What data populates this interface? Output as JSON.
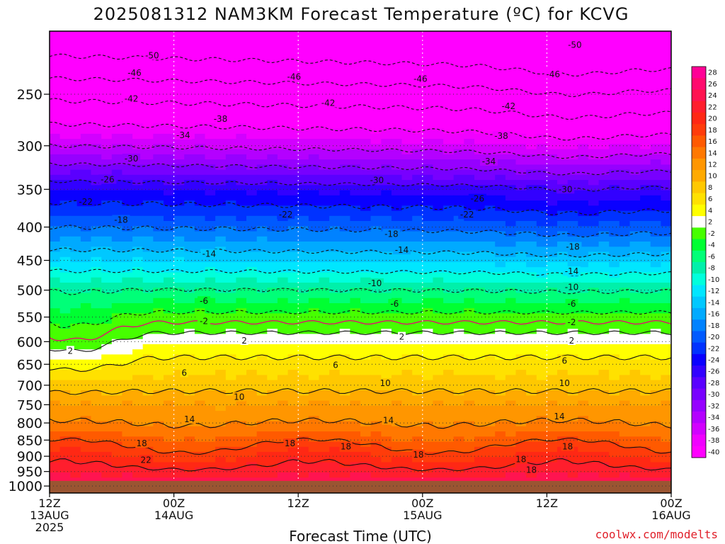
{
  "title": "2025081312 NAM3KM Forecast Temperature (ºC) for KCVG",
  "xlabel": "Forecast Time (UTC)",
  "credit": "coolwx.com/modelts",
  "chart_data": {
    "type": "heatmap",
    "title": "2025081312 NAM3KM Forecast Temperature (ºC) for KCVG",
    "xlabel": "Forecast Time (UTC)",
    "ylabel": "",
    "x_ticks": [
      {
        "hour": 0,
        "l1": "12Z",
        "l2": "13AUG",
        "l3": "2025"
      },
      {
        "hour": 12,
        "l1": "00Z",
        "l2": "14AUG",
        "l3": ""
      },
      {
        "hour": 24,
        "l1": "12Z",
        "l2": "",
        "l3": ""
      },
      {
        "hour": 36,
        "l1": "00Z",
        "l2": "15AUG",
        "l3": ""
      },
      {
        "hour": 48,
        "l1": "12Z",
        "l2": "",
        "l3": ""
      },
      {
        "hour": 60,
        "l1": "00Z",
        "l2": "16AUG",
        "l3": ""
      }
    ],
    "xlim": [
      0,
      60
    ],
    "y_ticks": [
      250,
      300,
      350,
      400,
      450,
      500,
      550,
      600,
      650,
      700,
      750,
      800,
      850,
      900,
      950,
      1000
    ],
    "ylim": [
      200,
      1025
    ],
    "y_scale": "log",
    "surface_pressure_hpa": 982,
    "colorbar": {
      "ticks": [
        28,
        26,
        24,
        22,
        20,
        18,
        16,
        14,
        12,
        10,
        8,
        6,
        4,
        2,
        -2,
        -4,
        -6,
        -8,
        -10,
        -12,
        -14,
        -16,
        -18,
        -20,
        -22,
        -24,
        -26,
        -28,
        -30,
        -32,
        -34,
        -36,
        -38,
        -40
      ],
      "colors": [
        "#ff0096",
        "#ff0a6e",
        "#ff1450",
        "#ff1e2d",
        "#ff2814",
        "#ff3c0a",
        "#ff5a00",
        "#ff7800",
        "#ff9600",
        "#ffaa00",
        "#ffc800",
        "#ffe100",
        "#ffff00",
        "#ffffff",
        "#46ff00",
        "#00ff32",
        "#00ff78",
        "#00f0aa",
        "#00ffdc",
        "#00e6ff",
        "#00c8ff",
        "#00aaff",
        "#0082ff",
        "#005aff",
        "#0032ff",
        "#0a00ff",
        "#3200ff",
        "#5a00ff",
        "#7800ff",
        "#9600ff",
        "#b400ff",
        "#d200ff",
        "#f000ff",
        "#ff00ff"
      ]
    },
    "level_temperature_at_t0": {
      "200": -54,
      "250": -43,
      "300": -34,
      "350": -24,
      "400": -18,
      "450": -12,
      "500": -6,
      "550": -2,
      "600": 2,
      "650": 6,
      "700": 9,
      "750": 12,
      "800": 14,
      "850": 17,
      "900": 20,
      "950": 23,
      "982": 25
    },
    "contours": {
      "dashed_below_zero": [
        -50,
        -46,
        -42,
        -38,
        -34,
        -30,
        -26,
        -22,
        -18,
        -14,
        -10,
        -6,
        -2
      ],
      "solid_above_zero": [
        2,
        6,
        10,
        14,
        18,
        22
      ],
      "freezing_line": 0
    },
    "contour_labels": [
      {
        "v": "-50",
        "h": 9.9,
        "p": 218
      },
      {
        "v": "-50",
        "h": 50.7,
        "p": 210
      },
      {
        "v": "-46",
        "h": 8.2,
        "p": 232
      },
      {
        "v": "-46",
        "h": 23.6,
        "p": 235
      },
      {
        "v": "-46",
        "h": 35.8,
        "p": 237
      },
      {
        "v": "-46",
        "h": 48.6,
        "p": 233
      },
      {
        "v": "-42",
        "h": 7.9,
        "p": 254
      },
      {
        "v": "-42",
        "h": 26.9,
        "p": 258
      },
      {
        "v": "-42",
        "h": 44.3,
        "p": 261
      },
      {
        "v": "-38",
        "h": 16.5,
        "p": 273
      },
      {
        "v": "-38",
        "h": 43.6,
        "p": 290
      },
      {
        "v": "-34",
        "h": 12.9,
        "p": 289
      },
      {
        "v": "-34",
        "h": 42.4,
        "p": 317
      },
      {
        "v": "-30",
        "h": 7.9,
        "p": 314
      },
      {
        "v": "-30",
        "h": 31.6,
        "p": 339
      },
      {
        "v": "-30",
        "h": 49.8,
        "p": 350
      },
      {
        "v": "-26",
        "h": 5.6,
        "p": 338
      },
      {
        "v": "-26",
        "h": 41.3,
        "p": 362
      },
      {
        "v": "-22",
        "h": 3.5,
        "p": 366
      },
      {
        "v": "-22",
        "h": 22.8,
        "p": 383
      },
      {
        "v": "-22",
        "h": 40.3,
        "p": 383
      },
      {
        "v": "-18",
        "h": 6.9,
        "p": 390
      },
      {
        "v": "-18",
        "h": 33.0,
        "p": 410
      },
      {
        "v": "-18",
        "h": 50.5,
        "p": 429
      },
      {
        "v": "-14",
        "h": 15.4,
        "p": 440
      },
      {
        "v": "-14",
        "h": 34.0,
        "p": 434
      },
      {
        "v": "-14",
        "h": 50.4,
        "p": 468
      },
      {
        "v": "-10",
        "h": 31.4,
        "p": 488
      },
      {
        "v": "-10",
        "h": 50.4,
        "p": 495
      },
      {
        "v": "-6",
        "h": 14.9,
        "p": 520
      },
      {
        "v": "-6",
        "h": 33.3,
        "p": 525
      },
      {
        "v": "-6",
        "h": 50.4,
        "p": 525
      },
      {
        "v": "-2",
        "h": 14.9,
        "p": 558
      },
      {
        "v": "-2",
        "h": 50.4,
        "p": 560
      },
      {
        "v": "2",
        "h": 2.0,
        "p": 620
      },
      {
        "v": "2",
        "h": 18.8,
        "p": 598
      },
      {
        "v": "2",
        "h": 34.0,
        "p": 590
      },
      {
        "v": "2",
        "h": 50.4,
        "p": 598
      },
      {
        "v": "6",
        "h": 13.0,
        "p": 670
      },
      {
        "v": "6",
        "h": 27.6,
        "p": 652
      },
      {
        "v": "6",
        "h": 49.7,
        "p": 642
      },
      {
        "v": "10",
        "h": 18.3,
        "p": 730
      },
      {
        "v": "10",
        "h": 32.4,
        "p": 695
      },
      {
        "v": "10",
        "h": 49.7,
        "p": 695
      },
      {
        "v": "14",
        "h": 13.5,
        "p": 790
      },
      {
        "v": "14",
        "h": 32.7,
        "p": 793
      },
      {
        "v": "14",
        "h": 49.2,
        "p": 782
      },
      {
        "v": "18",
        "h": 8.9,
        "p": 860
      },
      {
        "v": "18",
        "h": 23.2,
        "p": 860
      },
      {
        "v": "18",
        "h": 28.6,
        "p": 870
      },
      {
        "v": "18",
        "h": 35.6,
        "p": 895
      },
      {
        "v": "18",
        "h": 45.5,
        "p": 910
      },
      {
        "v": "18",
        "h": 50.0,
        "p": 870
      },
      {
        "v": "18",
        "h": 46.5,
        "p": 945
      },
      {
        "v": "22",
        "h": 9.3,
        "p": 912
      }
    ]
  }
}
